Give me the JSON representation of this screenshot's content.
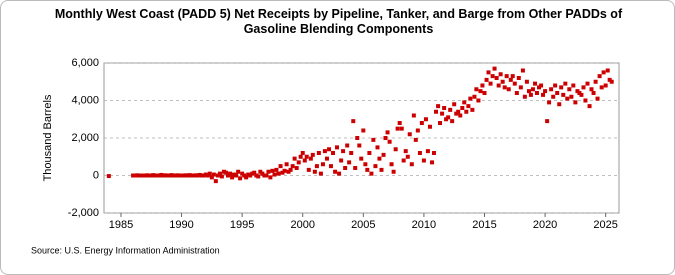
{
  "chart_data": {
    "type": "scatter",
    "title": "Monthly West Coast (PADD 5) Net Receipts by Pipeline, Tanker, and Barge from Other PADDs of Gasoline Blending Components",
    "ylabel": "Thousand Barrels",
    "source": "Source: U.S. Energy Information Administration",
    "color": "#cc0000",
    "grid": true,
    "xlim": [
      1983.6,
      2026.1
    ],
    "xticks": [
      1985,
      1990,
      1995,
      2000,
      2005,
      2010,
      2015,
      2020,
      2025
    ],
    "ylim": [
      -2000,
      6000
    ],
    "yticks": [
      {
        "value": -2000,
        "label": "-2,000"
      },
      0,
      {
        "value": 2000,
        "label": "2,000"
      },
      {
        "value": 4000,
        "label": "4,000"
      },
      {
        "value": 6000,
        "label": "6,000"
      }
    ],
    "x": [
      1984.0,
      1986.0,
      1986.17,
      1986.33,
      1986.5,
      1986.67,
      1986.83,
      1987.0,
      1987.17,
      1987.33,
      1987.5,
      1987.67,
      1987.83,
      1988.0,
      1988.17,
      1988.33,
      1988.5,
      1988.67,
      1988.83,
      1989.0,
      1989.17,
      1989.33,
      1989.5,
      1989.67,
      1989.83,
      1990.0,
      1990.17,
      1990.33,
      1990.5,
      1990.67,
      1990.83,
      1991.0,
      1991.17,
      1991.33,
      1991.5,
      1991.67,
      1991.83,
      1992.0,
      1992.17,
      1992.33,
      1992.5,
      1992.67,
      1992.83,
      1993.0,
      1993.17,
      1993.33,
      1993.5,
      1993.67,
      1993.83,
      1994.0,
      1994.17,
      1994.33,
      1994.5,
      1994.67,
      1994.83,
      1995.0,
      1995.17,
      1995.33,
      1995.5,
      1995.67,
      1995.83,
      1996.0,
      1996.17,
      1996.33,
      1996.5,
      1996.67,
      1996.83,
      1997.0,
      1997.17,
      1997.33,
      1997.5,
      1997.67,
      1997.83,
      1998.0,
      1998.17,
      1998.33,
      1998.5,
      1998.67,
      1998.83,
      1999.0,
      1999.17,
      1999.33,
      1999.5,
      1999.67,
      1999.83,
      2000.0,
      2000.17,
      2000.33,
      2000.5,
      2000.67,
      2000.83,
      2001.0,
      2001.17,
      2001.33,
      2001.5,
      2001.67,
      2001.83,
      2002.0,
      2002.17,
      2002.33,
      2002.5,
      2002.67,
      2002.83,
      2003.0,
      2003.17,
      2003.33,
      2003.5,
      2003.67,
      2003.83,
      2004.0,
      2004.17,
      2004.33,
      2004.5,
      2004.67,
      2004.83,
      2005.0,
      2005.17,
      2005.33,
      2005.5,
      2005.67,
      2005.83,
      2006.0,
      2006.17,
      2006.33,
      2006.5,
      2006.67,
      2006.83,
      2007.0,
      2007.17,
      2007.33,
      2007.5,
      2007.67,
      2007.83,
      2008.0,
      2008.17,
      2008.33,
      2008.5,
      2008.67,
      2008.83,
      2009.0,
      2009.17,
      2009.33,
      2009.5,
      2009.67,
      2009.83,
      2010.0,
      2010.17,
      2010.33,
      2010.5,
      2010.67,
      2010.83,
      2011.0,
      2011.17,
      2011.33,
      2011.5,
      2011.67,
      2011.83,
      2012.0,
      2012.17,
      2012.33,
      2012.5,
      2012.67,
      2012.83,
      2013.0,
      2013.17,
      2013.33,
      2013.5,
      2013.67,
      2013.83,
      2014.0,
      2014.17,
      2014.33,
      2014.5,
      2014.67,
      2014.83,
      2015.0,
      2015.17,
      2015.33,
      2015.5,
      2015.67,
      2015.83,
      2016.0,
      2016.17,
      2016.33,
      2016.5,
      2016.67,
      2016.83,
      2017.0,
      2017.17,
      2017.33,
      2017.5,
      2017.67,
      2017.83,
      2018.0,
      2018.17,
      2018.33,
      2018.5,
      2018.67,
      2018.83,
      2019.0,
      2019.17,
      2019.33,
      2019.5,
      2019.67,
      2019.83,
      2020.0,
      2020.17,
      2020.33,
      2020.5,
      2020.67,
      2020.83,
      2021.0,
      2021.17,
      2021.33,
      2021.5,
      2021.67,
      2021.83,
      2022.0,
      2022.17,
      2022.33,
      2022.5,
      2022.67,
      2022.83,
      2023.0,
      2023.17,
      2023.33,
      2023.5,
      2023.67,
      2023.83,
      2024.0,
      2024.17,
      2024.33,
      2024.5,
      2024.67,
      2024.83,
      2025.0,
      2025.17,
      2025.33,
      2025.5
    ],
    "values": [
      -30,
      0,
      0,
      10,
      0,
      0,
      0,
      0,
      10,
      0,
      0,
      20,
      0,
      0,
      0,
      30,
      0,
      10,
      0,
      0,
      20,
      0,
      0,
      10,
      0,
      0,
      0,
      10,
      0,
      20,
      0,
      0,
      10,
      0,
      30,
      0,
      0,
      50,
      0,
      100,
      -100,
      50,
      -300,
      0,
      100,
      -50,
      200,
      150,
      0,
      100,
      -100,
      50,
      0,
      200,
      -150,
      100,
      0,
      -100,
      50,
      0,
      100,
      150,
      0,
      -50,
      200,
      100,
      0,
      0,
      200,
      -100,
      250,
      50,
      300,
      100,
      500,
      150,
      250,
      600,
      200,
      300,
      500,
      900,
      400,
      700,
      1000,
      1200,
      800,
      1000,
      300,
      900,
      1100,
      200,
      500,
      1200,
      100,
      600,
      1300,
      900,
      1400,
      500,
      1200,
      200,
      1500,
      100,
      800,
      1300,
      400,
      1600,
      700,
      1200,
      2900,
      400,
      2000,
      1600,
      900,
      2400,
      600,
      300,
      1200,
      100,
      1900,
      500,
      1500,
      900,
      300,
      1100,
      2000,
      2300,
      1800,
      600,
      200,
      1400,
      2500,
      2800,
      2500,
      800,
      1300,
      1000,
      2200,
      600,
      3200,
      1900,
      2400,
      1200,
      2800,
      800,
      3000,
      1300,
      2600,
      700,
      1200,
      3400,
      3700,
      2800,
      3300,
      3600,
      3000,
      3100,
      3500,
      2900,
      3800,
      3300,
      3400,
      3200,
      3600,
      3900,
      3400,
      3700,
      4100,
      3500,
      4200,
      4600,
      4000,
      4500,
      4800,
      4400,
      5100,
      5500,
      4900,
      5300,
      5700,
      5200,
      4800,
      5400,
      5000,
      4700,
      5300,
      4600,
      5100,
      5300,
      4900,
      4400,
      5200,
      4700,
      5600,
      4200,
      5000,
      4500,
      4300,
      4600,
      4900,
      4400,
      4700,
      4800,
      4300,
      4500,
      2900,
      3900,
      4600,
      4200,
      4800,
      4400,
      3800,
      4700,
      4300,
      4900,
      4100,
      4600,
      4200,
      4800,
      3900,
      4500,
      4400,
      4300,
      4700,
      4000,
      4900,
      3700,
      4600,
      4400,
      5000,
      4100,
      5300,
      4700,
      5500,
      4800,
      5600,
      5100,
      5000
    ]
  }
}
